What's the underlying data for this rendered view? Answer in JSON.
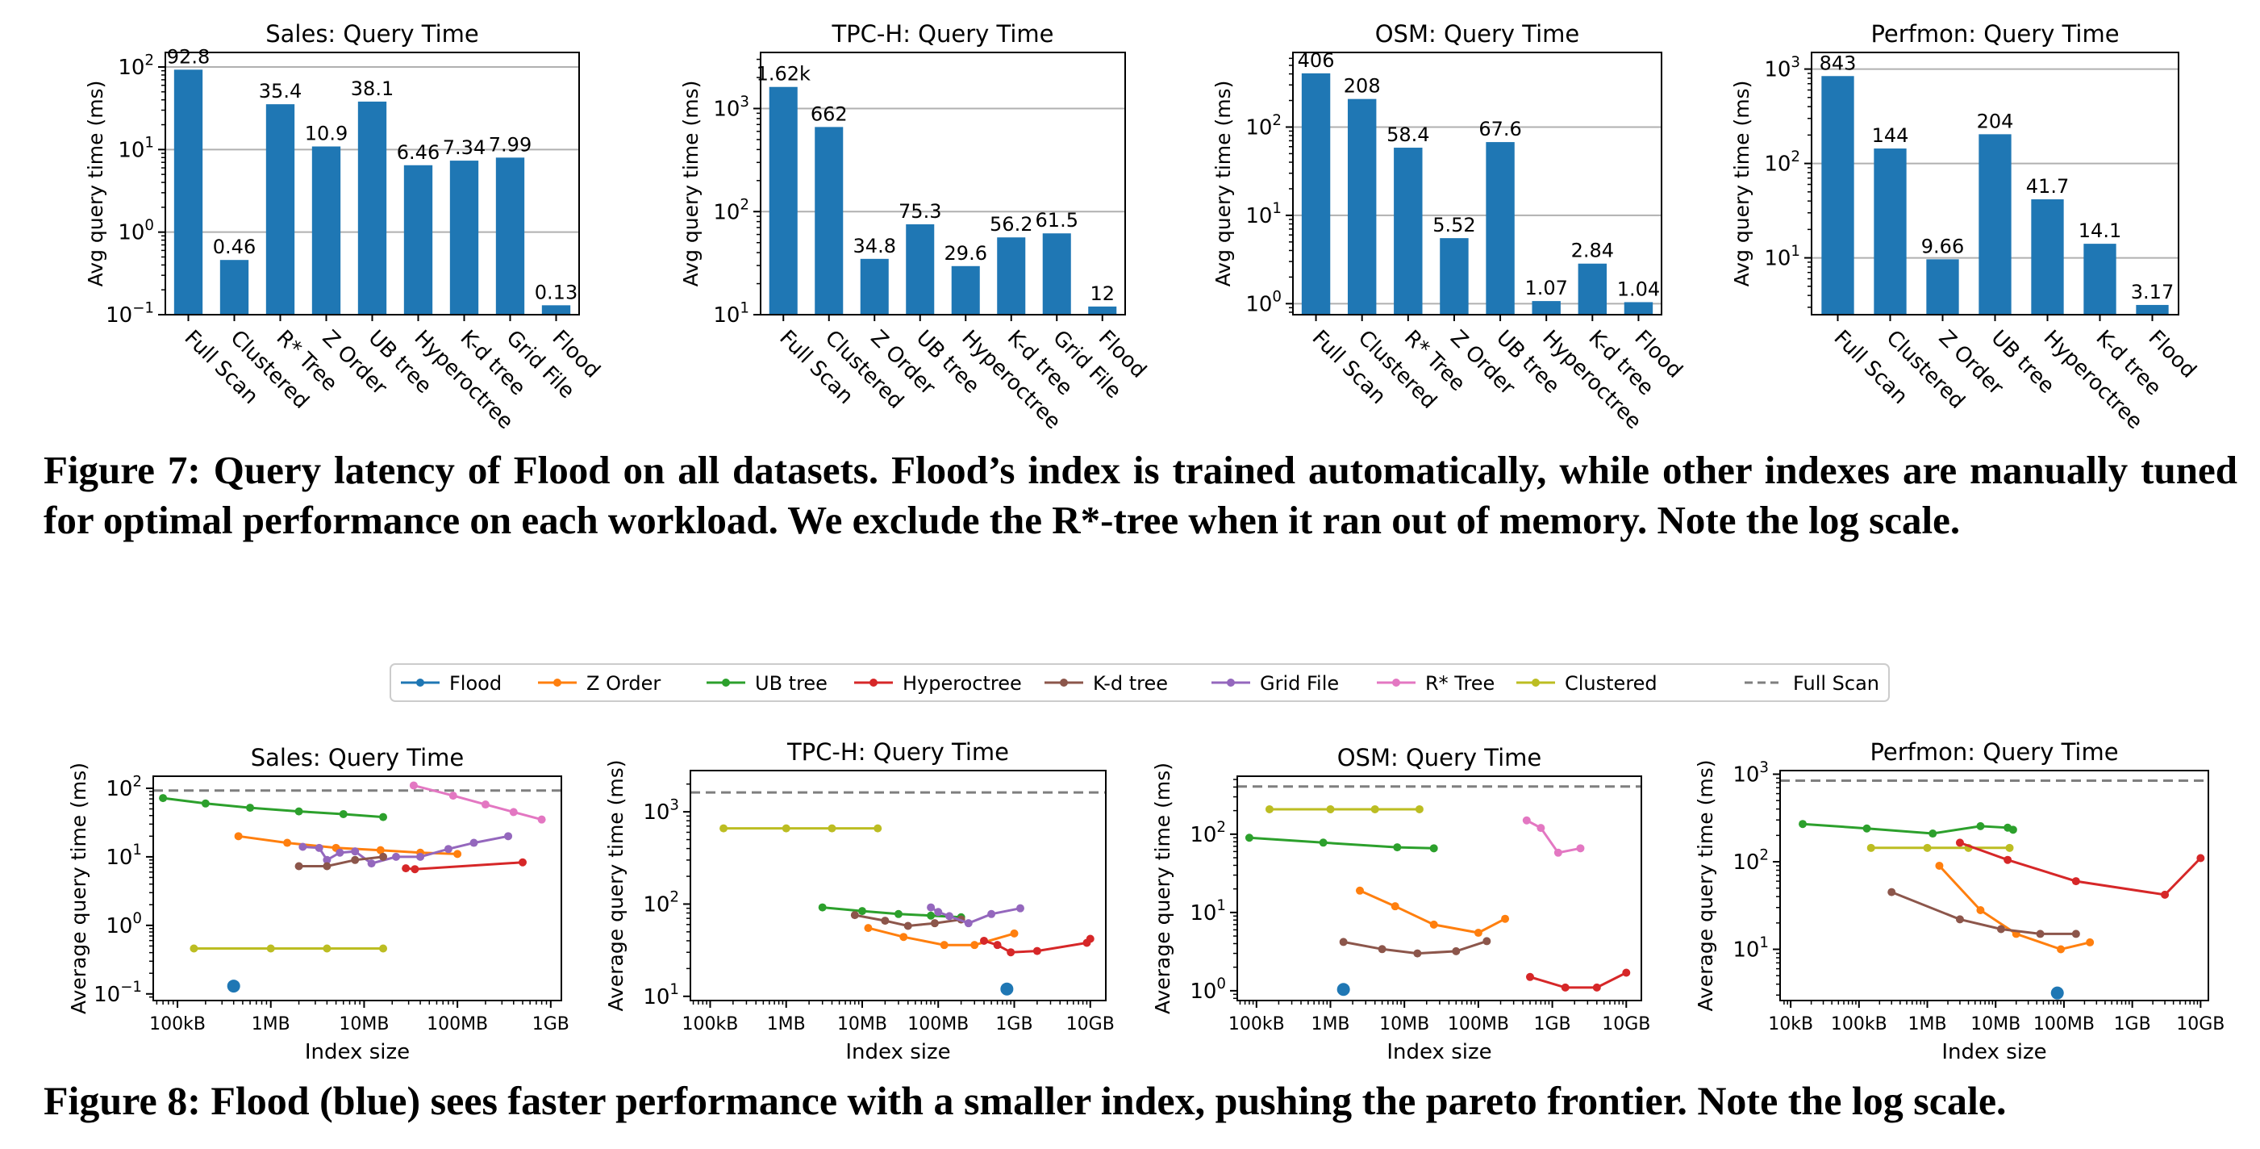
{
  "captions": {
    "figure7": "Figure 7: Query latency of Flood on all datasets. Flood’s index is trained automatically, while other indexes are manually tuned for optimal performance on each workload. We exclude the R*-tree when it ran out of memory. Note the log scale.",
    "figure8": "Figure 8: Flood (blue) sees faster performance with a smaller index, pushing the pareto frontier. Note the log scale."
  },
  "colors": {
    "bar": "#1f77b4",
    "Flood": "#1f77b4",
    "Z Order": "#ff7f0e",
    "UB tree": "#2ca02c",
    "Hyperoctree": "#d62728",
    "K-d tree": "#8c564b",
    "Grid File": "#9467bd",
    "R* Tree": "#e377c2",
    "Clustered": "#bcbd22",
    "Full Scan": "#7f7f7f"
  },
  "legend": {
    "placement": "top-center above Figure 8 panels",
    "entries": [
      "Flood",
      "Z Order",
      "UB tree",
      "Hyperoctree",
      "K-d tree",
      "Grid File",
      "R* Tree",
      "Clustered",
      "Full Scan"
    ]
  },
  "chart_data": [
    {
      "type": "bar",
      "title": "Sales: Query Time",
      "xlabel": "",
      "ylabel": "Avg query time (ms)",
      "yscale": "log",
      "ylim": [
        0.1,
        150
      ],
      "grid": "y",
      "yticks": [
        {
          "v": 0.1,
          "base": "10",
          "exp": "−1"
        },
        {
          "v": 1,
          "base": "10",
          "exp": "0"
        },
        {
          "v": 10,
          "base": "10",
          "exp": "1"
        },
        {
          "v": 100,
          "base": "10",
          "exp": "2"
        }
      ],
      "categories": [
        "Full Scan",
        "Clustered",
        "R* Tree",
        "Z Order",
        "UB tree",
        "Hyperoctree",
        "K-d tree",
        "Grid File",
        "Flood"
      ],
      "values": [
        92.8,
        0.46,
        35.4,
        10.9,
        38.1,
        6.46,
        7.34,
        7.99,
        0.13
      ],
      "labels": [
        "92.8",
        "0.46",
        "35.4",
        "10.9",
        "38.1",
        "6.46",
        "7.34",
        "7.99",
        "0.13"
      ]
    },
    {
      "type": "bar",
      "title": "TPC-H: Query Time",
      "xlabel": "",
      "ylabel": "Avg query time (ms)",
      "yscale": "log",
      "ylim": [
        10,
        3500
      ],
      "grid": "y",
      "yticks": [
        {
          "v": 10,
          "base": "10",
          "exp": "1"
        },
        {
          "v": 100,
          "base": "10",
          "exp": "2"
        },
        {
          "v": 1000,
          "base": "10",
          "exp": "3"
        }
      ],
      "categories": [
        "Full Scan",
        "Clustered",
        "Z Order",
        "UB tree",
        "Hyperoctree",
        "K-d tree",
        "Grid File",
        "Flood"
      ],
      "values": [
        1620,
        662,
        34.8,
        75.3,
        29.6,
        56.2,
        61.5,
        12
      ],
      "labels": [
        "1.62k",
        "662",
        "34.8",
        "75.3",
        "29.6",
        "56.2",
        "61.5",
        "12"
      ]
    },
    {
      "type": "bar",
      "title": "OSM: Query Time",
      "xlabel": "",
      "ylabel": "Avg query time (ms)",
      "yscale": "log",
      "ylim": [
        0.75,
        700
      ],
      "grid": "y",
      "yticks": [
        {
          "v": 1,
          "base": "10",
          "exp": "0"
        },
        {
          "v": 10,
          "base": "10",
          "exp": "1"
        },
        {
          "v": 100,
          "base": "10",
          "exp": "2"
        }
      ],
      "categories": [
        "Full Scan",
        "Clustered",
        "R* Tree",
        "Z Order",
        "UB tree",
        "Hyperoctree",
        "K-d tree",
        "Flood"
      ],
      "values": [
        406,
        208,
        58.4,
        5.52,
        67.6,
        1.07,
        2.84,
        1.04
      ],
      "labels": [
        "406",
        "208",
        "58.4",
        "5.52",
        "67.6",
        "1.07",
        "2.84",
        "1.04"
      ]
    },
    {
      "type": "bar",
      "title": "Perfmon: Query Time",
      "xlabel": "",
      "ylabel": "Avg query time (ms)",
      "yscale": "log",
      "ylim": [
        2.5,
        1500
      ],
      "grid": "y",
      "yticks": [
        {
          "v": 10,
          "base": "10",
          "exp": "1"
        },
        {
          "v": 100,
          "base": "10",
          "exp": "2"
        },
        {
          "v": 1000,
          "base": "10",
          "exp": "3"
        }
      ],
      "categories": [
        "Full Scan",
        "Clustered",
        "Z Order",
        "UB tree",
        "Hyperoctree",
        "K-d tree",
        "Flood"
      ],
      "values": [
        843,
        144,
        9.66,
        204,
        41.7,
        14.1,
        3.17
      ],
      "labels": [
        "843",
        "144",
        "9.66",
        "204",
        "41.7",
        "14.1",
        "3.17"
      ]
    },
    {
      "type": "line",
      "title": "Sales: Query Time",
      "xlabel": "Index size",
      "ylabel": "Average query time (ms)",
      "xscale": "log",
      "yscale": "log",
      "xlim": [
        55000.0,
        1300000000.0
      ],
      "ylim": [
        0.08,
        150
      ],
      "grid": false,
      "xticks": [
        {
          "v": 100000.0,
          "label": "100kB"
        },
        {
          "v": 1000000.0,
          "label": "1MB"
        },
        {
          "v": 10000000.0,
          "label": "10MB"
        },
        {
          "v": 100000000.0,
          "label": "100MB"
        },
        {
          "v": 1000000000.0,
          "label": "1GB"
        }
      ],
      "yticks": [
        {
          "v": 0.1,
          "base": "10",
          "exp": "−1"
        },
        {
          "v": 1,
          "base": "10",
          "exp": "0"
        },
        {
          "v": 10,
          "base": "10",
          "exp": "1"
        },
        {
          "v": 100,
          "base": "10",
          "exp": "2"
        }
      ],
      "full_scan": 92.8,
      "series": [
        {
          "name": "UB tree",
          "x": [
            70000.0,
            200000.0,
            600000.0,
            2000000.0,
            6000000.0,
            16000000.0
          ],
          "y": [
            72,
            60,
            52,
            46,
            42,
            38
          ]
        },
        {
          "name": "Z Order",
          "x": [
            450000.0,
            1500000.0,
            5000000.0,
            15000000.0,
            40000000.0,
            100000000.0
          ],
          "y": [
            20,
            16,
            13.5,
            12.5,
            11.5,
            11
          ]
        },
        {
          "name": "Grid File",
          "x": [
            2200000.0,
            3300000.0,
            4000000.0,
            5500000.0,
            8000000.0,
            12000000.0,
            22000000.0,
            40000000.0,
            80000000.0,
            150000000.0,
            350000000.0
          ],
          "y": [
            14,
            13.5,
            9,
            11.5,
            12,
            8,
            10,
            10,
            13,
            16,
            20
          ]
        },
        {
          "name": "K-d tree",
          "x": [
            2000000.0,
            4000000.0,
            8000000.0,
            16000000.0
          ],
          "y": [
            7.3,
            7.3,
            9,
            10
          ]
        },
        {
          "name": "Hyperoctree",
          "x": [
            28000000.0,
            35000000.0,
            500000000.0
          ],
          "y": [
            6.8,
            6.6,
            8.3
          ]
        },
        {
          "name": "R* Tree",
          "x": [
            34000000.0,
            90000000.0,
            200000000.0,
            400000000.0,
            800000000.0
          ],
          "y": [
            110,
            78,
            58,
            45,
            35
          ]
        },
        {
          "name": "Clustered",
          "x": [
            150000.0,
            1000000.0,
            4000000.0,
            16000000.0
          ],
          "y": [
            0.46,
            0.46,
            0.46,
            0.46
          ]
        },
        {
          "name": "Flood",
          "x": [
            400000.0
          ],
          "y": [
            0.13
          ],
          "marker_only": true
        }
      ]
    },
    {
      "type": "line",
      "title": "TPC-H: Query Time",
      "xlabel": "Index size",
      "ylabel": "Average query time (ms)",
      "xscale": "log",
      "yscale": "log",
      "xlim": [
        55000.0,
        16000000000.0
      ],
      "ylim": [
        9,
        2800
      ],
      "grid": false,
      "xticks": [
        {
          "v": 100000.0,
          "label": "100kB"
        },
        {
          "v": 1000000.0,
          "label": "1MB"
        },
        {
          "v": 10000000.0,
          "label": "10MB"
        },
        {
          "v": 100000000.0,
          "label": "100MB"
        },
        {
          "v": 1000000000.0,
          "label": "1GB"
        },
        {
          "v": 10000000000.0,
          "label": "10GB"
        }
      ],
      "yticks": [
        {
          "v": 10,
          "base": "10",
          "exp": "1"
        },
        {
          "v": 100,
          "base": "10",
          "exp": "2"
        },
        {
          "v": 1000,
          "base": "10",
          "exp": "3"
        }
      ],
      "full_scan": 1620,
      "series": [
        {
          "name": "Clustered",
          "x": [
            150000.0,
            1000000.0,
            4000000.0,
            16000000.0
          ],
          "y": [
            662,
            662,
            662,
            662
          ]
        },
        {
          "name": "UB tree",
          "x": [
            3000000.0,
            10000000.0,
            30000000.0,
            80000000.0,
            200000000.0
          ],
          "y": [
            92,
            84,
            78,
            75,
            72
          ]
        },
        {
          "name": "K-d tree",
          "x": [
            8000000.0,
            20000000.0,
            40000000.0,
            90000000.0,
            200000000.0
          ],
          "y": [
            76,
            66,
            58,
            62,
            68
          ]
        },
        {
          "name": "Grid File",
          "x": [
            80000000.0,
            100000000.0,
            140000000.0,
            250000000.0,
            500000000.0,
            1200000000.0
          ],
          "y": [
            92,
            82,
            74,
            62,
            78,
            90
          ]
        },
        {
          "name": "Z Order",
          "x": [
            12000000.0,
            35000000.0,
            120000000.0,
            300000000.0,
            1000000000.0
          ],
          "y": [
            55,
            44,
            36,
            36,
            48
          ]
        },
        {
          "name": "Hyperoctree",
          "x": [
            400000000.0,
            600000000.0,
            900000000.0,
            2000000000.0,
            9000000000.0,
            10000000000.0
          ],
          "y": [
            40,
            36,
            30,
            31,
            38,
            42
          ]
        },
        {
          "name": "Flood",
          "x": [
            800000000.0
          ],
          "y": [
            12
          ],
          "marker_only": true
        }
      ]
    },
    {
      "type": "line",
      "title": "OSM: Query Time",
      "xlabel": "Index size",
      "ylabel": "Average query time (ms)",
      "xscale": "log",
      "yscale": "log",
      "xlim": [
        55000.0,
        16000000000.0
      ],
      "ylim": [
        0.75,
        550
      ],
      "grid": false,
      "xticks": [
        {
          "v": 100000.0,
          "label": "100kB"
        },
        {
          "v": 1000000.0,
          "label": "1MB"
        },
        {
          "v": 10000000.0,
          "label": "10MB"
        },
        {
          "v": 100000000.0,
          "label": "100MB"
        },
        {
          "v": 1000000000.0,
          "label": "1GB"
        },
        {
          "v": 10000000000.0,
          "label": "10GB"
        }
      ],
      "yticks": [
        {
          "v": 1,
          "base": "10",
          "exp": "0"
        },
        {
          "v": 10,
          "base": "10",
          "exp": "1"
        },
        {
          "v": 100,
          "base": "10",
          "exp": "2"
        }
      ],
      "full_scan": 406,
      "series": [
        {
          "name": "Clustered",
          "x": [
            150000.0,
            1000000.0,
            4000000.0,
            16000000.0
          ],
          "y": [
            208,
            208,
            208,
            208
          ]
        },
        {
          "name": "UB tree",
          "x": [
            80000.0,
            800000.0,
            8000000.0,
            25000000.0
          ],
          "y": [
            90,
            78,
            68,
            66
          ]
        },
        {
          "name": "Z Order",
          "x": [
            2500000.0,
            7500000.0,
            25000000.0,
            100000000.0,
            230000000.0
          ],
          "y": [
            19,
            12,
            7,
            5.5,
            8.3
          ]
        },
        {
          "name": "K-d tree",
          "x": [
            1500000.0,
            5000000.0,
            15000000.0,
            50000000.0,
            130000000.0
          ],
          "y": [
            4.2,
            3.4,
            3,
            3.2,
            4.3
          ]
        },
        {
          "name": "R* Tree",
          "x": [
            450000000.0,
            700000000.0,
            1200000000.0,
            2400000000.0
          ],
          "y": [
            150,
            120,
            58,
            66
          ]
        },
        {
          "name": "Hyperoctree",
          "x": [
            500000000.0,
            1500000000.0,
            4000000000.0,
            10000000000.0
          ],
          "y": [
            1.5,
            1.1,
            1.1,
            1.7
          ]
        },
        {
          "name": "Flood",
          "x": [
            1500000.0
          ],
          "y": [
            1.04
          ],
          "marker_only": true
        }
      ]
    },
    {
      "type": "line",
      "title": "Perfmon: Query Time",
      "xlabel": "Index size",
      "ylabel": "Average query time (ms)",
      "xscale": "log",
      "yscale": "log",
      "xlim": [
        7000.0,
        13000000000.0
      ],
      "ylim": [
        2.6,
        1100
      ],
      "grid": false,
      "xticks": [
        {
          "v": 10000.0,
          "label": "10kB"
        },
        {
          "v": 100000.0,
          "label": "100kB"
        },
        {
          "v": 1000000.0,
          "label": "1MB"
        },
        {
          "v": 10000000.0,
          "label": "10MB"
        },
        {
          "v": 100000000.0,
          "label": "100MB"
        },
        {
          "v": 1000000000.0,
          "label": "1GB"
        },
        {
          "v": 10000000000.0,
          "label": "10GB"
        }
      ],
      "yticks": [
        {
          "v": 10,
          "base": "10",
          "exp": "1"
        },
        {
          "v": 100,
          "base": "10",
          "exp": "2"
        },
        {
          "v": 1000,
          "base": "10",
          "exp": "3"
        }
      ],
      "full_scan": 843,
      "series": [
        {
          "name": "UB tree",
          "x": [
            15000.0,
            130000.0,
            1200000.0,
            6000000.0,
            15000000.0,
            18000000.0
          ],
          "y": [
            270,
            240,
            210,
            255,
            245,
            232
          ]
        },
        {
          "name": "Clustered",
          "x": [
            150000.0,
            1000000.0,
            4000000.0,
            16000000.0
          ],
          "y": [
            144,
            144,
            144,
            144
          ]
        },
        {
          "name": "Hyperoctree",
          "x": [
            3000000.0,
            15000000.0,
            150000000.0,
            3000000000.0,
            10000000000.0
          ],
          "y": [
            165,
            105,
            60,
            42,
            110
          ]
        },
        {
          "name": "Z Order",
          "x": [
            1500000.0,
            6000000.0,
            20000000.0,
            90000000.0,
            240000000.0
          ],
          "y": [
            90,
            28,
            15,
            10,
            12
          ]
        },
        {
          "name": "K-d tree",
          "x": [
            300000.0,
            3000000.0,
            12000000.0,
            45000000.0,
            150000000.0
          ],
          "y": [
            45,
            22,
            17,
            15,
            15
          ]
        },
        {
          "name": "Flood",
          "x": [
            80000000.0
          ],
          "y": [
            3.17
          ],
          "marker_only": true
        }
      ]
    }
  ]
}
